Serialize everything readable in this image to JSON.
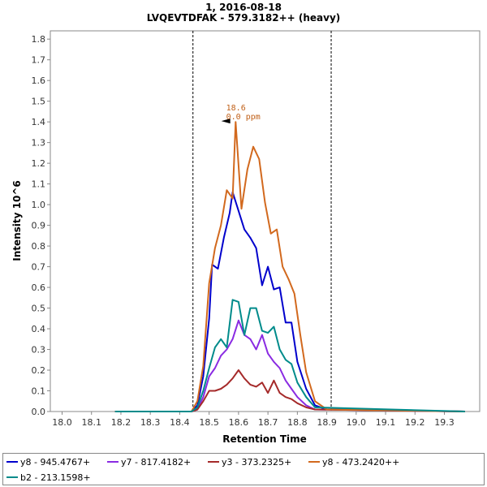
{
  "chart_data": {
    "type": "line",
    "title": "1, 2016-08-18",
    "subtitle": "LVQEVTDFAK - 579.3182++ (heavy)",
    "xlabel": "Retention Time",
    "ylabel": "Intensity 10^6",
    "xlim": [
      17.96,
      19.42
    ],
    "ylim": [
      0,
      1.84
    ],
    "x_ticks": [
      "18.0",
      "18.1",
      "18.2",
      "18.3",
      "18.4",
      "18.5",
      "18.6",
      "18.7",
      "18.8",
      "18.9",
      "19.0",
      "19.1",
      "19.2",
      "19.3"
    ],
    "y_ticks": [
      "0.0",
      "0.1",
      "0.2",
      "0.3",
      "0.4",
      "0.5",
      "0.6",
      "0.7",
      "0.8",
      "0.9",
      "1.0",
      "1.1",
      "1.2",
      "1.3",
      "1.4",
      "1.5",
      "1.6",
      "1.7",
      "1.8"
    ],
    "integration_bounds": [
      18.445,
      18.915
    ],
    "peak_annotation": {
      "x": 18.58,
      "y": 1.4,
      "rt_label": "18.6",
      "ppm_label": "0.0 ppm",
      "color": "#c06018"
    },
    "series": [
      {
        "name": "y8 - 945.4767+",
        "color": "#0000cc",
        "points": [
          [
            18.18,
            0
          ],
          [
            18.44,
            0
          ],
          [
            18.46,
            0.03
          ],
          [
            18.48,
            0.17
          ],
          [
            18.5,
            0.45
          ],
          [
            18.51,
            0.71
          ],
          [
            18.53,
            0.69
          ],
          [
            18.55,
            0.84
          ],
          [
            18.57,
            0.96
          ],
          [
            18.58,
            1.06
          ],
          [
            18.6,
            0.97
          ],
          [
            18.62,
            0.88
          ],
          [
            18.64,
            0.84
          ],
          [
            18.66,
            0.79
          ],
          [
            18.68,
            0.61
          ],
          [
            18.7,
            0.7
          ],
          [
            18.72,
            0.59
          ],
          [
            18.74,
            0.6
          ],
          [
            18.76,
            0.43
          ],
          [
            18.78,
            0.43
          ],
          [
            18.8,
            0.24
          ],
          [
            18.83,
            0.11
          ],
          [
            18.86,
            0.03
          ],
          [
            18.9,
            0.01
          ],
          [
            19.37,
            0
          ]
        ]
      },
      {
        "name": "y7 - 817.4182+",
        "color": "#8a2be2",
        "points": [
          [
            18.18,
            0
          ],
          [
            18.44,
            0
          ],
          [
            18.46,
            0.01
          ],
          [
            18.48,
            0.07
          ],
          [
            18.5,
            0.17
          ],
          [
            18.52,
            0.21
          ],
          [
            18.54,
            0.27
          ],
          [
            18.56,
            0.3
          ],
          [
            18.58,
            0.35
          ],
          [
            18.6,
            0.44
          ],
          [
            18.62,
            0.37
          ],
          [
            18.64,
            0.35
          ],
          [
            18.66,
            0.3
          ],
          [
            18.68,
            0.37
          ],
          [
            18.7,
            0.28
          ],
          [
            18.72,
            0.24
          ],
          [
            18.74,
            0.21
          ],
          [
            18.76,
            0.15
          ],
          [
            18.78,
            0.11
          ],
          [
            18.8,
            0.07
          ],
          [
            18.83,
            0.03
          ],
          [
            18.86,
            0.01
          ],
          [
            19.37,
            0
          ]
        ]
      },
      {
        "name": "y3 - 373.2325+",
        "color": "#a52a2a",
        "points": [
          [
            18.18,
            0
          ],
          [
            18.44,
            0
          ],
          [
            18.46,
            0.01
          ],
          [
            18.48,
            0.05
          ],
          [
            18.5,
            0.1
          ],
          [
            18.52,
            0.1
          ],
          [
            18.54,
            0.11
          ],
          [
            18.56,
            0.13
          ],
          [
            18.58,
            0.16
          ],
          [
            18.6,
            0.2
          ],
          [
            18.62,
            0.16
          ],
          [
            18.64,
            0.13
          ],
          [
            18.66,
            0.12
          ],
          [
            18.68,
            0.14
          ],
          [
            18.7,
            0.09
          ],
          [
            18.72,
            0.15
          ],
          [
            18.74,
            0.09
          ],
          [
            18.76,
            0.07
          ],
          [
            18.78,
            0.06
          ],
          [
            18.8,
            0.04
          ],
          [
            18.83,
            0.02
          ],
          [
            18.86,
            0.01
          ],
          [
            19.37,
            0
          ]
        ]
      },
      {
        "name": "y8 - 473.2420++",
        "color": "#d2691e",
        "points": [
          [
            18.18,
            0
          ],
          [
            18.44,
            0
          ],
          [
            18.46,
            0.05
          ],
          [
            18.48,
            0.22
          ],
          [
            18.5,
            0.62
          ],
          [
            18.52,
            0.79
          ],
          [
            18.54,
            0.9
          ],
          [
            18.56,
            1.07
          ],
          [
            18.58,
            1.03
          ],
          [
            18.59,
            1.4
          ],
          [
            18.61,
            0.98
          ],
          [
            18.63,
            1.17
          ],
          [
            18.65,
            1.28
          ],
          [
            18.67,
            1.22
          ],
          [
            18.69,
            1.01
          ],
          [
            18.71,
            0.86
          ],
          [
            18.73,
            0.88
          ],
          [
            18.75,
            0.7
          ],
          [
            18.77,
            0.64
          ],
          [
            18.79,
            0.57
          ],
          [
            18.81,
            0.37
          ],
          [
            18.83,
            0.19
          ],
          [
            18.86,
            0.05
          ],
          [
            18.9,
            0.01
          ],
          [
            19.37,
            0
          ]
        ]
      },
      {
        "name": "b2 - 213.1598+",
        "color": "#008b8b",
        "points": [
          [
            18.18,
            0
          ],
          [
            18.44,
            0
          ],
          [
            18.46,
            0.02
          ],
          [
            18.48,
            0.1
          ],
          [
            18.5,
            0.21
          ],
          [
            18.52,
            0.31
          ],
          [
            18.54,
            0.35
          ],
          [
            18.56,
            0.31
          ],
          [
            18.58,
            0.54
          ],
          [
            18.6,
            0.53
          ],
          [
            18.62,
            0.37
          ],
          [
            18.64,
            0.5
          ],
          [
            18.66,
            0.5
          ],
          [
            18.68,
            0.39
          ],
          [
            18.7,
            0.38
          ],
          [
            18.72,
            0.41
          ],
          [
            18.74,
            0.3
          ],
          [
            18.76,
            0.25
          ],
          [
            18.78,
            0.23
          ],
          [
            18.8,
            0.14
          ],
          [
            18.83,
            0.07
          ],
          [
            18.86,
            0.02
          ],
          [
            19.37,
            0
          ]
        ]
      }
    ]
  }
}
